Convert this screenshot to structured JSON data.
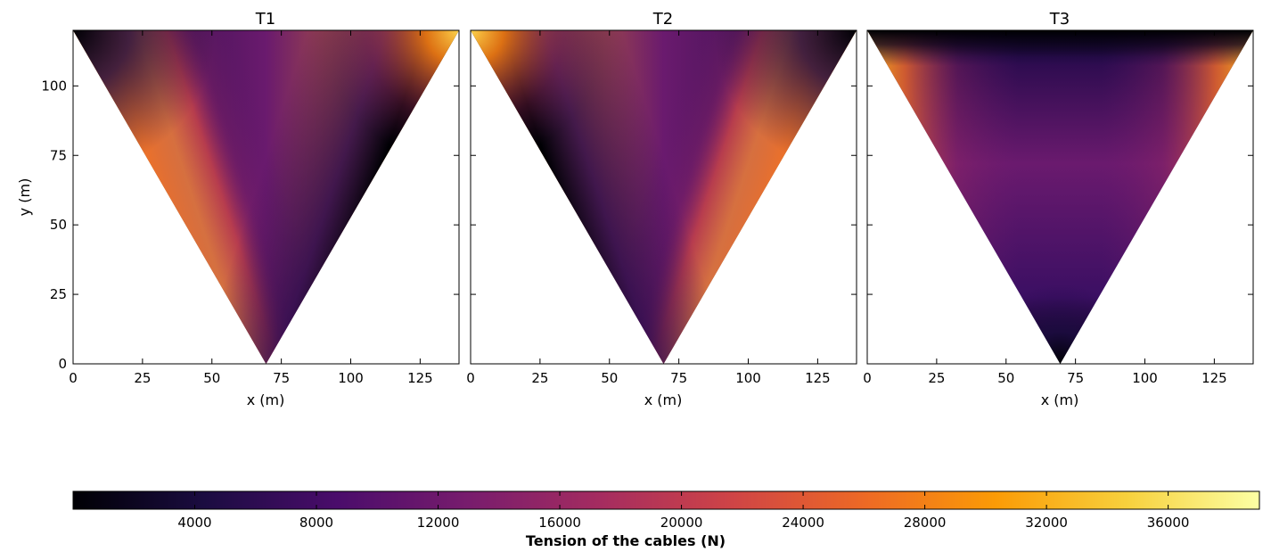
{
  "chart_data": [
    {
      "type": "heatmap",
      "title": "T1",
      "xlabel": "x (m)",
      "ylabel": "y (m)",
      "xlim": [
        0,
        139
      ],
      "ylim": [
        0,
        120
      ],
      "xticks": [
        0,
        25,
        50,
        75,
        100,
        125
      ],
      "yticks": [
        0,
        25,
        50,
        75,
        100
      ],
      "region": "inverted triangle with vertices (0,120), (139,120), (69.5,0)",
      "high_values_near": "left edge toward apex and top-right corner",
      "low_values_near": "right edge and top-left corner"
    },
    {
      "type": "heatmap",
      "title": "T2",
      "xlabel": "x (m)",
      "ylabel": "",
      "xlim": [
        0,
        139
      ],
      "ylim": [
        0,
        120
      ],
      "xticks": [
        0,
        25,
        50,
        75,
        100,
        125
      ],
      "yticks": [
        0,
        25,
        50,
        75,
        100
      ],
      "region": "inverted triangle with vertices (0,120), (139,120), (69.5,0)",
      "high_values_near": "right edge toward apex and top-left corner",
      "low_values_near": "left edge and top-right corner"
    },
    {
      "type": "heatmap",
      "title": "T3",
      "xlabel": "x (m)",
      "ylabel": "",
      "xlim": [
        0,
        139
      ],
      "ylim": [
        0,
        120
      ],
      "xticks": [
        0,
        25,
        50,
        75,
        100,
        125
      ],
      "yticks": [
        0,
        25,
        50,
        75,
        100
      ],
      "region": "inverted triangle with vertices (0,120), (139,120), (69.5,0)",
      "high_values_near": "left and right edges near the top",
      "low_values_near": "top edge and bottom apex"
    }
  ],
  "colorbar": {
    "label": "Tension of the cables (N)",
    "colormap": "inferno",
    "range": [
      0,
      39000
    ],
    "ticks": [
      4000,
      8000,
      12000,
      16000,
      20000,
      24000,
      28000,
      32000,
      36000
    ],
    "colors": [
      "#000004",
      "#1b0c41",
      "#4a0c6b",
      "#781c6d",
      "#a52c60",
      "#cf4446",
      "#ed6925",
      "#fb9b06",
      "#f7d13d",
      "#fcffa4"
    ]
  }
}
